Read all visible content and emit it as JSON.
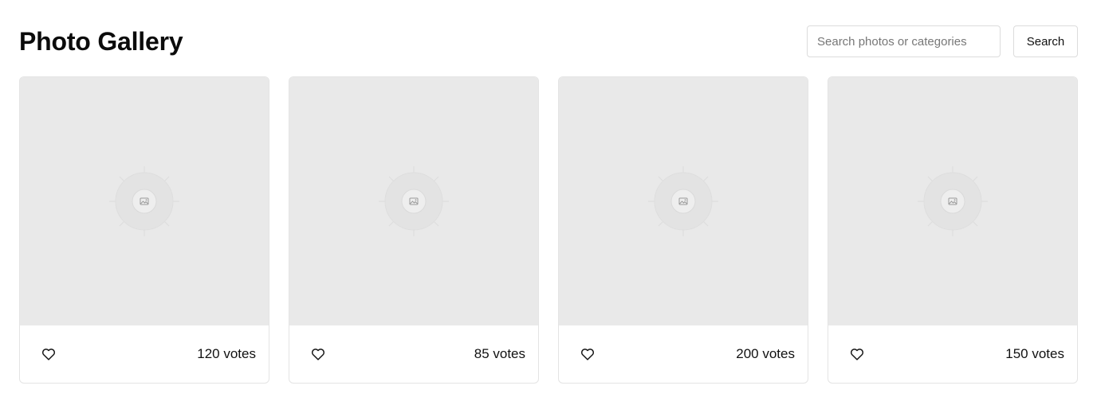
{
  "header": {
    "title": "Photo Gallery"
  },
  "search": {
    "placeholder": "Search photos or categories",
    "value": "",
    "button_label": "Search"
  },
  "photos": [
    {
      "votes_label": "120 votes",
      "votes": 120,
      "image_icon": "image-placeholder-icon",
      "like_icon": "heart-icon"
    },
    {
      "votes_label": "85 votes",
      "votes": 85,
      "image_icon": "image-placeholder-icon",
      "like_icon": "heart-icon"
    },
    {
      "votes_label": "200 votes",
      "votes": 200,
      "image_icon": "image-placeholder-icon",
      "like_icon": "heart-icon"
    },
    {
      "votes_label": "150 votes",
      "votes": 150,
      "image_icon": "image-placeholder-icon",
      "like_icon": "heart-icon"
    }
  ],
  "colors": {
    "placeholder_bg": "#e9e9e9",
    "border": "#e4e4e4",
    "text": "#111111"
  }
}
